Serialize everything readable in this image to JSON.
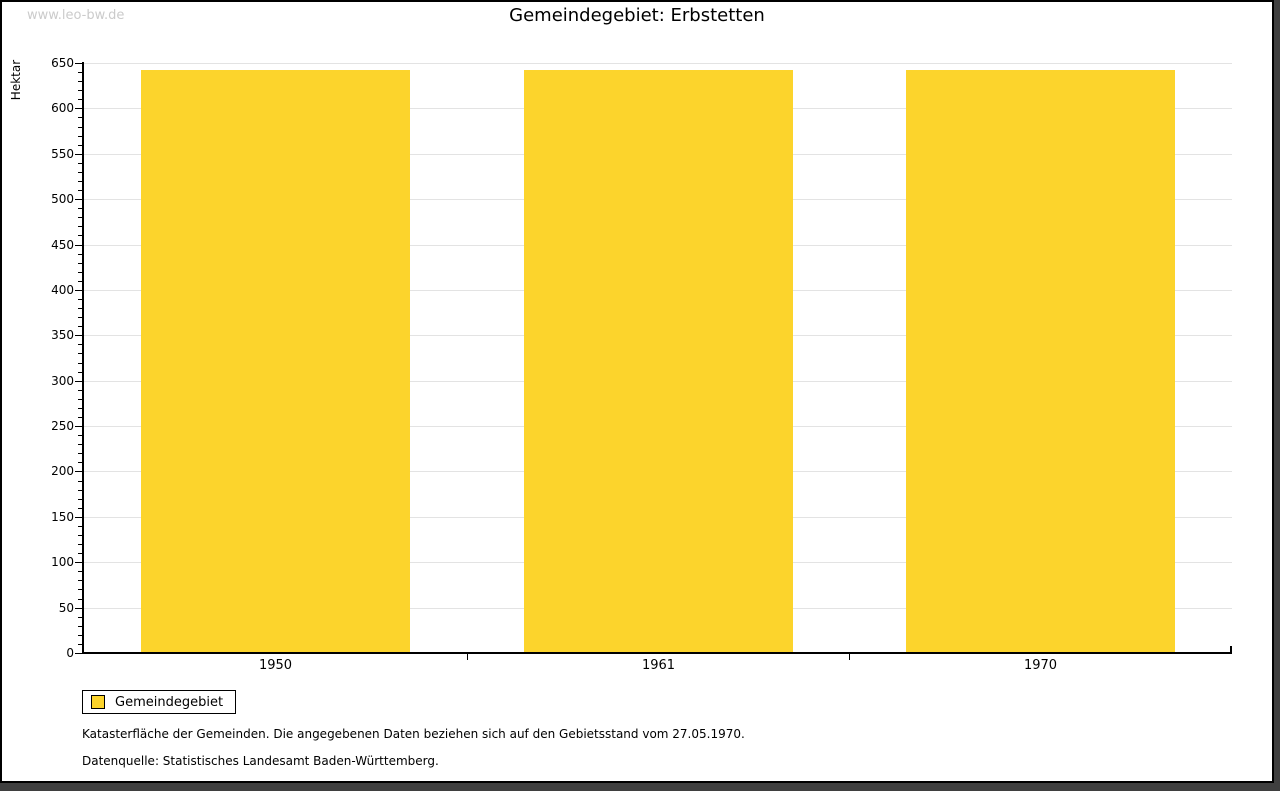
{
  "watermark": "www.leo-bw.de",
  "footer": {
    "line1": "Katasterfläche der Gemeinden. Die angegebenen Daten beziehen sich auf den Gebietsstand vom 27.05.1970.",
    "line2": "Datenquelle: Statistisches Landesamt Baden-Württemberg."
  },
  "colors": {
    "bar": "#fcd42c",
    "grid": "#e3e3e3",
    "axis": "#000000",
    "watermark": "#cbcbcb",
    "frame_shadow": "#3f3f3f"
  },
  "chart_data": {
    "type": "bar",
    "title": "Gemeindegebiet: Erbstetten",
    "categories": [
      "1950",
      "1961",
      "1970"
    ],
    "series": [
      {
        "name": "Gemeindegebiet",
        "values": [
          642,
          642,
          642
        ]
      }
    ],
    "xlabel": "",
    "ylabel": "Hektar",
    "ylim": [
      0,
      650
    ],
    "ytick_major": 50,
    "ytick_minor": 10,
    "grid": true,
    "legend_position": "bottom-left",
    "bar_color": "#fcd42c"
  }
}
